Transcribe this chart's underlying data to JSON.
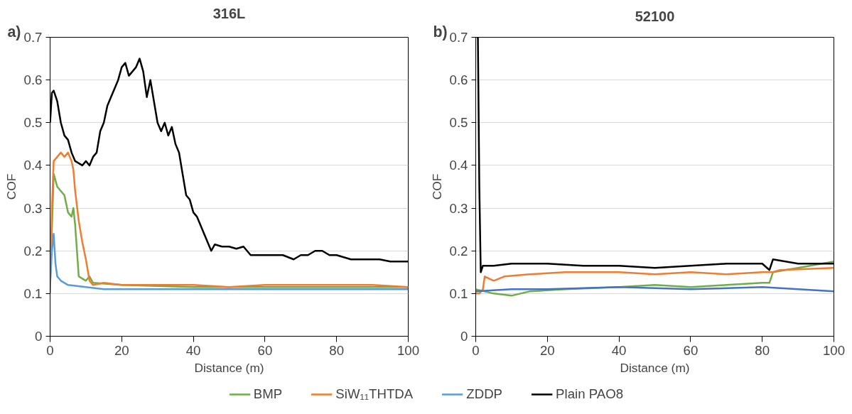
{
  "chart_data": [
    {
      "type": "line",
      "title": "316L",
      "xlabel": "Distance (m)",
      "ylabel": "COF",
      "annotations": [
        "a)"
      ],
      "xlim": [
        0,
        100
      ],
      "xticks": [
        0,
        20,
        40,
        60,
        80,
        100
      ],
      "ylim": [
        0,
        0.7
      ],
      "yticks": [
        0,
        0.1,
        0.2,
        0.3,
        0.4,
        0.5,
        0.6,
        0.7
      ],
      "grid": "y",
      "legend": "bottom",
      "line_style": "solid",
      "marker": "none",
      "series": [
        {
          "name": "BMP",
          "color": "#70ad47",
          "x": [
            0,
            1,
            2,
            3,
            4,
            5,
            6,
            6.5,
            7,
            7.5,
            8,
            9,
            10,
            11,
            12,
            20,
            40,
            60,
            80,
            100
          ],
          "values": [
            0.12,
            0.38,
            0.35,
            0.34,
            0.33,
            0.29,
            0.28,
            0.3,
            0.26,
            0.2,
            0.14,
            0.135,
            0.13,
            0.14,
            0.125,
            0.12,
            0.115,
            0.115,
            0.115,
            0.115
          ]
        },
        {
          "name": "SiW₁₁THTDA",
          "color": "#ed7d31",
          "x": [
            0,
            0.5,
            1,
            2,
            3,
            4,
            5,
            6,
            6.5,
            7,
            8,
            9,
            10,
            11,
            12,
            15,
            20,
            30,
            40,
            50,
            60,
            70,
            80,
            90,
            100
          ],
          "values": [
            0.1,
            0.3,
            0.41,
            0.42,
            0.43,
            0.42,
            0.43,
            0.41,
            0.39,
            0.34,
            0.27,
            0.22,
            0.18,
            0.13,
            0.12,
            0.125,
            0.12,
            0.12,
            0.12,
            0.115,
            0.12,
            0.12,
            0.12,
            0.12,
            0.115
          ]
        },
        {
          "name": "ZDDP",
          "color": "#5b9bd5",
          "x": [
            0,
            0.5,
            1,
            1.5,
            2,
            3,
            5,
            10,
            15,
            20,
            30,
            40,
            50,
            60,
            70,
            80,
            90,
            100
          ],
          "values": [
            0.12,
            0.2,
            0.24,
            0.17,
            0.14,
            0.13,
            0.12,
            0.115,
            0.11,
            0.11,
            0.11,
            0.11,
            0.11,
            0.11,
            0.11,
            0.11,
            0.11,
            0.11
          ]
        },
        {
          "name": "Plain PAO8",
          "color": "#000000",
          "x": [
            0,
            0.5,
            1,
            2,
            3,
            4,
            5,
            6,
            7,
            8,
            9,
            10,
            11,
            12,
            13,
            14,
            15,
            16,
            17,
            18,
            19,
            20,
            21,
            22,
            23,
            24,
            25,
            26,
            27,
            28,
            29,
            30,
            31,
            32,
            33,
            34,
            35,
            36,
            37,
            38,
            39,
            40,
            41,
            43,
            44,
            45,
            46,
            48,
            50,
            52,
            54,
            56,
            60,
            65,
            68,
            70,
            72,
            74,
            76,
            78,
            80,
            84,
            88,
            92,
            95,
            100
          ],
          "values": [
            0.5,
            0.57,
            0.575,
            0.55,
            0.5,
            0.47,
            0.46,
            0.43,
            0.41,
            0.405,
            0.4,
            0.41,
            0.4,
            0.42,
            0.43,
            0.48,
            0.5,
            0.54,
            0.56,
            0.58,
            0.6,
            0.63,
            0.64,
            0.61,
            0.62,
            0.63,
            0.65,
            0.62,
            0.56,
            0.6,
            0.55,
            0.5,
            0.48,
            0.5,
            0.47,
            0.49,
            0.45,
            0.43,
            0.38,
            0.33,
            0.32,
            0.29,
            0.28,
            0.24,
            0.22,
            0.2,
            0.215,
            0.21,
            0.21,
            0.205,
            0.21,
            0.19,
            0.19,
            0.19,
            0.18,
            0.19,
            0.19,
            0.2,
            0.2,
            0.19,
            0.19,
            0.18,
            0.18,
            0.18,
            0.175,
            0.175
          ]
        }
      ]
    },
    {
      "type": "line",
      "title": "52100",
      "xlabel": "Distance (m)",
      "ylabel": "COF",
      "annotations": [
        "b)"
      ],
      "xlim": [
        0,
        100
      ],
      "xticks": [
        0,
        20,
        40,
        60,
        80,
        100
      ],
      "ylim": [
        0,
        0.7
      ],
      "yticks": [
        0,
        0.1,
        0.2,
        0.3,
        0.4,
        0.5,
        0.6,
        0.7
      ],
      "grid": "y",
      "line_style": "solid",
      "marker": "none",
      "series": [
        {
          "color": "#70ad47",
          "x": [
            0,
            5,
            10,
            15,
            25,
            40,
            50,
            60,
            70,
            80,
            82,
            83,
            90,
            100
          ],
          "values": [
            0.11,
            0.1,
            0.095,
            0.105,
            0.11,
            0.115,
            0.12,
            0.115,
            0.12,
            0.125,
            0.125,
            0.15,
            0.16,
            0.175
          ]
        },
        {
          "color": "#ed7d31",
          "x": [
            0,
            1,
            2,
            2.5,
            5,
            8,
            15,
            25,
            40,
            50,
            60,
            70,
            80,
            83,
            85,
            100
          ],
          "values": [
            0.1,
            0.1,
            0.11,
            0.14,
            0.13,
            0.14,
            0.145,
            0.15,
            0.15,
            0.145,
            0.15,
            0.145,
            0.15,
            0.15,
            0.155,
            0.16
          ]
        },
        {
          "color": "#4472c4",
          "x": [
            0,
            10,
            20,
            40,
            60,
            80,
            90,
            100
          ],
          "values": [
            0.105,
            0.11,
            0.11,
            0.115,
            0.11,
            0.115,
            0.11,
            0.105
          ]
        },
        {
          "color": "#000000",
          "x": [
            0.3,
            0.6,
            1,
            1.4,
            2,
            5,
            10,
            20,
            30,
            40,
            50,
            60,
            70,
            80,
            82,
            83,
            90,
            100
          ],
          "values": [
            0.7,
            0.7,
            0.35,
            0.15,
            0.165,
            0.165,
            0.17,
            0.17,
            0.165,
            0.165,
            0.16,
            0.165,
            0.17,
            0.17,
            0.155,
            0.18,
            0.17,
            0.17
          ]
        }
      ]
    }
  ]
}
